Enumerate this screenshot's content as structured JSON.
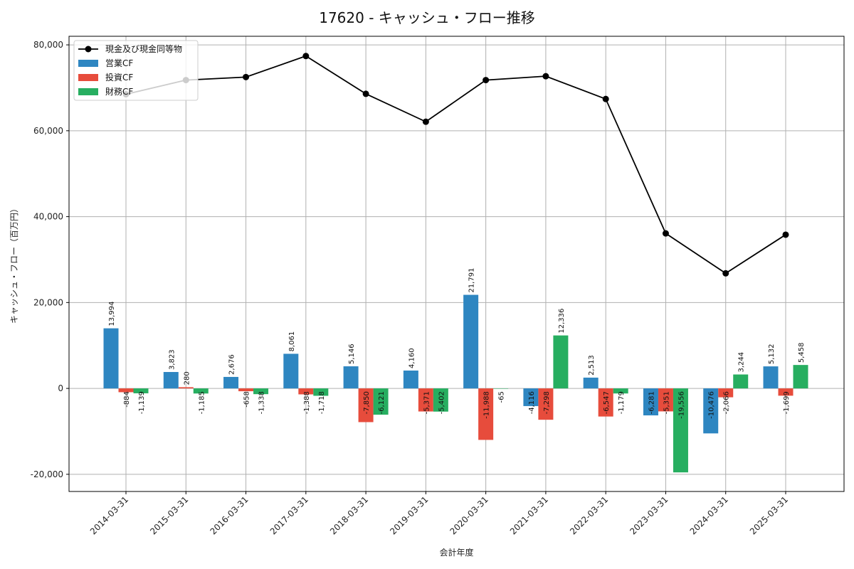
{
  "chart_data": {
    "type": "bar",
    "title": "17620 - キャッシュ・フロー推移",
    "xlabel": "会計年度",
    "ylabel": "キャッシュ・フロー（百万円）",
    "categories": [
      "2014-03-31",
      "2015-03-31",
      "2016-03-31",
      "2017-03-31",
      "2018-03-31",
      "2019-03-31",
      "2020-03-31",
      "2021-03-31",
      "2022-03-31",
      "2023-03-31",
      "2024-03-31",
      "2025-03-31"
    ],
    "ylim": [
      -24000,
      82000
    ],
    "yticks": [
      -20000,
      0,
      20000,
      40000,
      60000,
      80000
    ],
    "ytick_labels": [
      "-20,000",
      "0",
      "20,000",
      "40,000",
      "60,000",
      "80,000"
    ],
    "grid": true,
    "legend_position": "top-left",
    "series": [
      {
        "name": "営業CF",
        "kind": "bar",
        "color": "#2e86c1",
        "values": [
          13994,
          3823,
          2676,
          8061,
          5146,
          4160,
          21791,
          -4116,
          2513,
          -6281,
          -10476,
          5132
        ],
        "labels": [
          "13,994",
          "3,823",
          "2,676",
          "8,061",
          "5,146",
          "4,160",
          "21,791",
          "-4,116",
          "2,513",
          "-6,281",
          "-10,476",
          "5,132"
        ]
      },
      {
        "name": "投資CF",
        "kind": "bar",
        "color": "#e74c3c",
        "values": [
          -884,
          280,
          -658,
          -1388,
          -7850,
          -5371,
          -11988,
          -7298,
          -6547,
          -5351,
          -2066,
          -1699
        ],
        "labels": [
          "-884",
          "280",
          "-658",
          "-1,388",
          "-7,850",
          "-5,371",
          "-11,988",
          "-7,298",
          "-6,547",
          "-5,351",
          "-2,066",
          "-1,699"
        ]
      },
      {
        "name": "財務CF",
        "kind": "bar",
        "color": "#27ae60",
        "values": [
          -1139,
          -1185,
          -1338,
          -1718,
          -6121,
          -5402,
          -65,
          12336,
          -1179,
          -19556,
          3244,
          5458
        ],
        "labels": [
          "-1,139",
          "-1,185",
          "-1,338",
          "-1,718",
          "-6,121",
          "-5,402",
          "-65",
          "12,336",
          "-1,179",
          "-19,556",
          "3,244",
          "5,458"
        ]
      },
      {
        "name": "現金及び現金同等物",
        "kind": "line",
        "color": "#000000",
        "values": [
          68500,
          71800,
          72500,
          77400,
          68600,
          62100,
          71800,
          72700,
          67400,
          36100,
          26800,
          35800
        ]
      }
    ]
  }
}
